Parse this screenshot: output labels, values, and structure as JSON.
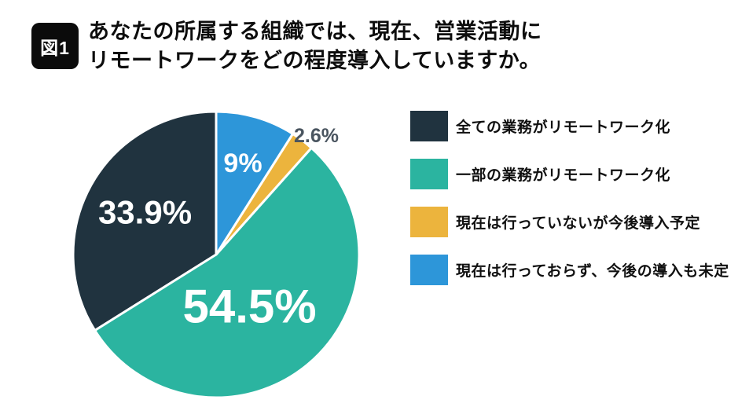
{
  "figure": {
    "badge": "図1",
    "title_line1": "あなたの所属する組織では、現在、営業活動に",
    "title_line2": "リモートワークをどの程度導入していますか。"
  },
  "chart_data": {
    "type": "pie",
    "title": "あなたの所属する組織では、現在、営業活動にリモートワークをどの程度導入していますか。",
    "figure_label": "図1",
    "legend_position": "right",
    "start": "top",
    "direction": "counter-clockwise",
    "total": 100,
    "separator_color": "#ffffff",
    "slices": [
      {
        "label": "全ての業務がリモートワーク化",
        "value": 33.9,
        "display": "33.9%",
        "color": "#20333f",
        "label_color": "#ffffff",
        "label_r": 0.58,
        "label_angle": 301,
        "label_size": 42
      },
      {
        "label": "一部の業務がリモートワーク化",
        "value": 54.5,
        "display": "54.5%",
        "color": "#2bb4a0",
        "label_color": "#ffffff",
        "label_r": 0.43,
        "label_angle": 147,
        "label_size": 60
      },
      {
        "label": "現在は行っていないが今後導入予定",
        "value": 2.6,
        "display": "2.6%",
        "color": "#ecb43d",
        "label_color": "#4a5560",
        "label_r": 1.09,
        "label_angle": 40,
        "label_size": 25
      },
      {
        "label": "現在は行っておらず、今後の導入も未定",
        "value": 9,
        "display": "9%",
        "color": "#2d96d9",
        "label_color": "#ffffff",
        "label_r": 0.67,
        "label_angle": 16.2,
        "label_size": 34
      }
    ]
  }
}
